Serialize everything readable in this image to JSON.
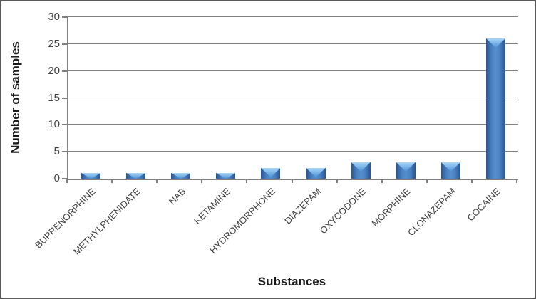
{
  "chart_data": {
    "type": "bar",
    "title": "",
    "categories": [
      "BUPRENORPHINE",
      "METHYLPHENIDATE",
      "NAB",
      "KETAMINE",
      "HYDROMORPHONE",
      "DIAZEPAM",
      "OXYCODONE",
      "MORPHINE",
      "CLONAZEPAM",
      "COCAINE"
    ],
    "values": [
      1,
      1,
      1,
      1,
      2,
      2,
      3,
      3,
      3,
      26
    ],
    "xlabel": "Substances",
    "ylabel": "Number of samples",
    "ylim": [
      0,
      30
    ],
    "ytick_step": 5,
    "yticks": [
      0,
      5,
      10,
      15,
      20,
      25,
      30
    ],
    "grid": true,
    "legend": false,
    "bar_style": "glossy-bevel",
    "colors": {
      "bar_center": "#4a82c4",
      "bar_edge": "#2a5590",
      "bar_highlight": "#a9d6f8",
      "gridline": "#808080",
      "axis": "#7f7f7f",
      "tick_text": "#404040",
      "frame_border": "#595959",
      "background": "#ffffff"
    }
  }
}
